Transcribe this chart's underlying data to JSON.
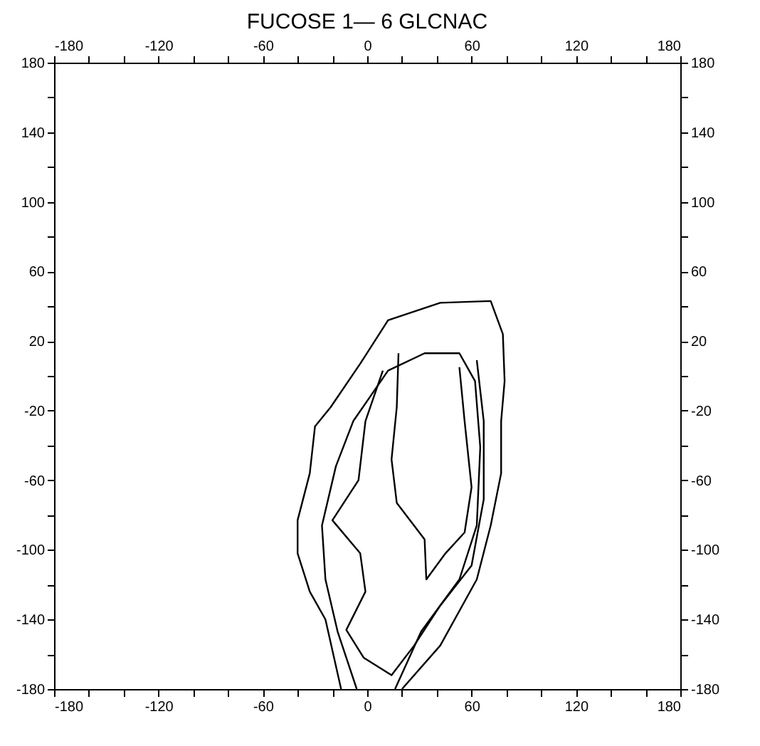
{
  "chart_data": {
    "type": "line",
    "title": "FUCOSE 1— 6 GLCNAC",
    "xlim": [
      -180,
      180
    ],
    "ylim": [
      -180,
      180
    ],
    "x2lim": [
      -180,
      180
    ],
    "y2lim": [
      -180,
      180
    ],
    "xticks": [
      -180,
      {
        "value": -160,
        "label": null
      },
      {
        "value": -140,
        "label": null
      },
      -120,
      {
        "value": -100,
        "label": null
      },
      {
        "value": -80,
        "label": null
      },
      -60,
      {
        "value": -40,
        "label": null
      },
      {
        "value": -20,
        "label": null
      },
      0,
      {
        "value": 20,
        "label": null
      },
      {
        "value": 40,
        "label": null
      },
      60,
      {
        "value": 80,
        "label": null
      },
      {
        "value": 100,
        "label": null
      },
      120,
      {
        "value": 140,
        "label": null
      },
      {
        "value": 160,
        "label": null
      },
      180
    ],
    "x2ticks": [
      -180,
      {
        "value": -160,
        "label": null
      },
      {
        "value": -140,
        "label": null
      },
      -120,
      {
        "value": -100,
        "label": null
      },
      {
        "value": -80,
        "label": null
      },
      -60,
      {
        "value": -40,
        "label": null
      },
      {
        "value": -20,
        "label": null
      },
      0,
      {
        "value": 20,
        "label": null
      },
      {
        "value": 40,
        "label": null
      },
      60,
      {
        "value": 80,
        "label": null
      },
      {
        "value": 100,
        "label": null
      },
      120,
      {
        "value": 140,
        "label": null
      },
      {
        "value": 160,
        "label": null
      },
      180
    ],
    "yticks": [
      180,
      {
        "value": 160,
        "label": null
      },
      140,
      {
        "value": 120,
        "label": null
      },
      100,
      {
        "value": 80,
        "label": null
      },
      60,
      {
        "value": 40,
        "label": null
      },
      20,
      {
        "value": 0,
        "label": null
      },
      -20,
      {
        "value": -40,
        "label": null
      },
      -60,
      {
        "value": -80,
        "label": null
      },
      -100,
      {
        "value": -120,
        "label": null
      },
      -140,
      {
        "value": -160,
        "label": null
      },
      -180
    ],
    "y2ticks": [
      180,
      {
        "value": 160,
        "label": null
      },
      140,
      {
        "value": 120,
        "label": null
      },
      100,
      {
        "value": 80,
        "label": null
      },
      60,
      {
        "value": 40,
        "label": null
      },
      20,
      {
        "value": 0,
        "label": null
      },
      -20,
      {
        "value": -40,
        "label": null
      },
      -60,
      {
        "value": -80,
        "label": null
      },
      -100,
      {
        "value": -120,
        "label": null
      },
      -140,
      {
        "value": -160,
        "label": null
      },
      -180
    ],
    "grid": false,
    "series": [
      {
        "color": "#000000",
        "x": [
          -15,
          -24,
          -33,
          -40,
          -40,
          -33,
          -30,
          -21,
          -4,
          12,
          42,
          71,
          78,
          79,
          77,
          77,
          71,
          63,
          42,
          20
        ],
        "values": [
          -180,
          -140,
          -124,
          -102,
          -83,
          -56,
          -29,
          -18,
          7,
          32,
          42,
          43,
          24,
          -3,
          -26,
          -56,
          -86,
          -117,
          -155,
          -180
        ]
      },
      {
        "color": "#000000",
        "x": [
          -6,
          -17,
          -24,
          -26,
          -18,
          -8,
          12,
          33,
          53,
          62,
          65,
          63,
          53,
          31,
          16
        ],
        "values": [
          -180,
          -147,
          -117,
          -86,
          -52,
          -26,
          3,
          13,
          13,
          -3,
          -41,
          -86,
          -117,
          -147,
          -180
        ]
      },
      {
        "color": "#000000",
        "x": [
          9,
          -1,
          -5,
          -20,
          -4,
          -1,
          -12,
          -2,
          14,
          27,
          42,
          60,
          67,
          67,
          63
        ],
        "values": [
          3,
          -26,
          -60,
          -83,
          -102,
          -124,
          -146,
          -162,
          -172,
          -155,
          -132,
          -109,
          -71,
          -26,
          9
        ]
      },
      {
        "color": "#000000",
        "x": [
          18,
          17,
          14,
          17,
          33,
          34,
          45,
          56,
          60,
          56,
          53
        ],
        "values": [
          13,
          -18,
          -48,
          -73,
          -94,
          -117,
          -102,
          -90,
          -64,
          -26,
          5
        ]
      }
    ]
  }
}
